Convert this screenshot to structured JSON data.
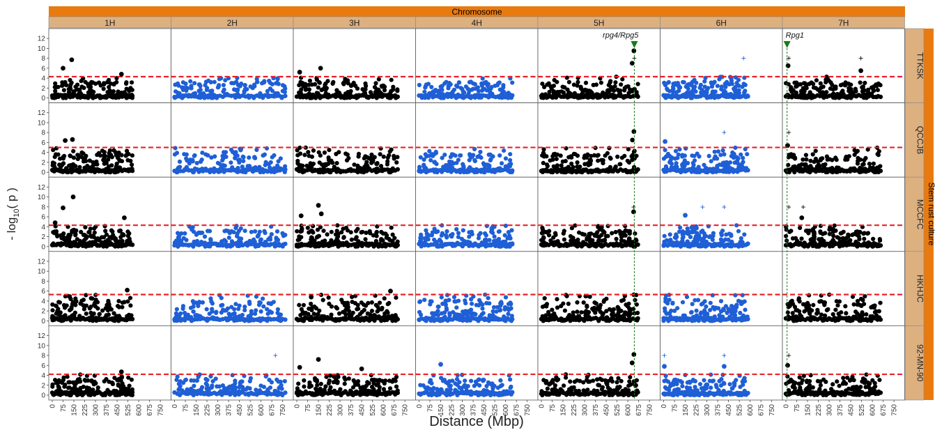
{
  "chart_data": {
    "type": "scatter",
    "title": "Chromosome",
    "xlabel": "Distance (Mbp)",
    "ylabel_prefix": "- log",
    "ylabel_sub": "10",
    "ylabel_suffix": "( p )",
    "row_strip_title": "Stem rust culture",
    "chromosomes": [
      "1H",
      "2H",
      "3H",
      "4H",
      "5H",
      "6H",
      "7H"
    ],
    "chromosome_lengths_mbp": [
      556,
      768,
      700,
      647,
      670,
      585,
      657
    ],
    "chromosome_point_colors": [
      "#000000",
      "#1f5fd6",
      "#000000",
      "#1f5fd6",
      "#000000",
      "#1f5fd6",
      "#000000"
    ],
    "cultures": [
      "TTKSK",
      "QCCJB",
      "MCCFC",
      "HKHJC",
      "92-MN-90"
    ],
    "xlim": [
      0,
      800
    ],
    "x_ticks": [
      0,
      75,
      150,
      225,
      300,
      375,
      450,
      525,
      600,
      675,
      750
    ],
    "x_tick_labels": [
      "0",
      "75",
      "150",
      "225",
      "300",
      "375",
      "450",
      "525",
      "600",
      "675",
      "750"
    ],
    "ylim": [
      0,
      13
    ],
    "y_ticks": [
      0,
      2,
      4,
      6,
      8,
      10,
      12
    ],
    "y_tick_labels": [
      "0",
      "2",
      "4",
      "6",
      "8",
      "10",
      "12"
    ],
    "thresholds": [
      4.3,
      5.0,
      4.3,
      5.3,
      4.2
    ],
    "threshold_color": "#e8202a",
    "strip_top_color": "#e87a10",
    "strip_color": "#ddb080",
    "genes": [
      {
        "label": "rpg4/Rpg5",
        "chromosome": "5H",
        "position_mbp": 645,
        "color": "#1a7a1a"
      },
      {
        "label": "Rpg1",
        "chromosome": "7H",
        "position_mbp": 8,
        "color": "#1a7a1a"
      }
    ],
    "notable_points": [
      {
        "culture": "TTKSK",
        "chromosome": "1H",
        "x": 135,
        "y": 7.7
      },
      {
        "culture": "TTKSK",
        "chromosome": "1H",
        "x": 75,
        "y": 6.0
      },
      {
        "culture": "TTKSK",
        "chromosome": "1H",
        "x": 480,
        "y": 4.8
      },
      {
        "culture": "TTKSK",
        "chromosome": "3H",
        "x": 165,
        "y": 6.0
      },
      {
        "culture": "TTKSK",
        "chromosome": "3H",
        "x": 20,
        "y": 5.2
      },
      {
        "culture": "TTKSK",
        "chromosome": "5H",
        "x": 642,
        "y": 9.5
      },
      {
        "culture": "TTKSK",
        "chromosome": "5H",
        "x": 630,
        "y": 7.0
      },
      {
        "culture": "TTKSK",
        "chromosome": "7H",
        "x": 15,
        "y": 6.5
      },
      {
        "culture": "TTKSK",
        "chromosome": "7H",
        "x": 520,
        "y": 5.5
      },
      {
        "culture": "QCCJB",
        "chromosome": "1H",
        "x": 90,
        "y": 6.4
      },
      {
        "culture": "QCCJB",
        "chromosome": "1H",
        "x": 140,
        "y": 6.6
      },
      {
        "culture": "QCCJB",
        "chromosome": "5H",
        "x": 642,
        "y": 8.2
      },
      {
        "culture": "QCCJB",
        "chromosome": "5H",
        "x": 632,
        "y": 6.5
      },
      {
        "culture": "QCCJB",
        "chromosome": "6H",
        "x": 10,
        "y": 6.2
      },
      {
        "culture": "QCCJB",
        "chromosome": "7H",
        "x": 12,
        "y": 5.4
      },
      {
        "culture": "MCCFC",
        "chromosome": "1H",
        "x": 145,
        "y": 10.0
      },
      {
        "culture": "MCCFC",
        "chromosome": "1H",
        "x": 75,
        "y": 7.8
      },
      {
        "culture": "MCCFC",
        "chromosome": "1H",
        "x": 20,
        "y": 4.8
      },
      {
        "culture": "MCCFC",
        "chromosome": "1H",
        "x": 500,
        "y": 5.8
      },
      {
        "culture": "MCCFC",
        "chromosome": "3H",
        "x": 150,
        "y": 8.3
      },
      {
        "culture": "MCCFC",
        "chromosome": "3H",
        "x": 30,
        "y": 6.2
      },
      {
        "culture": "MCCFC",
        "chromosome": "3H",
        "x": 170,
        "y": 6.6
      },
      {
        "culture": "MCCFC",
        "chromosome": "5H",
        "x": 640,
        "y": 7.0
      },
      {
        "culture": "MCCFC",
        "chromosome": "6H",
        "x": 150,
        "y": 6.3
      },
      {
        "culture": "MCCFC",
        "chromosome": "7H",
        "x": 110,
        "y": 5.8
      },
      {
        "culture": "HKHJC",
        "chromosome": "1H",
        "x": 520,
        "y": 6.2
      },
      {
        "culture": "HKHJC",
        "chromosome": "3H",
        "x": 650,
        "y": 6.0
      },
      {
        "culture": "HKHJC",
        "chromosome": "3H",
        "x": 100,
        "y": 4.8
      },
      {
        "culture": "HKHJC",
        "chromosome": "1H",
        "x": 120,
        "y": 4.9
      },
      {
        "culture": "92-MN-90",
        "chromosome": "3H",
        "x": 150,
        "y": 7.2
      },
      {
        "culture": "92-MN-90",
        "chromosome": "3H",
        "x": 20,
        "y": 5.6
      },
      {
        "culture": "92-MN-90",
        "chromosome": "3H",
        "x": 450,
        "y": 5.3
      },
      {
        "culture": "92-MN-90",
        "chromosome": "4H",
        "x": 150,
        "y": 6.2
      },
      {
        "culture": "92-MN-90",
        "chromosome": "5H",
        "x": 642,
        "y": 8.2
      },
      {
        "culture": "92-MN-90",
        "chromosome": "5H",
        "x": 630,
        "y": 6.5
      },
      {
        "culture": "92-MN-90",
        "chromosome": "6H",
        "x": 5,
        "y": 5.8
      },
      {
        "culture": "92-MN-90",
        "chromosome": "6H",
        "x": 420,
        "y": 5.8
      },
      {
        "culture": "92-MN-90",
        "chromosome": "7H",
        "x": 12,
        "y": 6.0
      },
      {
        "culture": "92-MN-90",
        "chromosome": "1H",
        "x": 480,
        "y": 4.7
      }
    ],
    "plus_markers": [
      {
        "culture": "TTKSK",
        "chromosome": "6H",
        "x": 555,
        "y": 8
      },
      {
        "culture": "TTKSK",
        "chromosome": "7H",
        "x": 20,
        "y": 8
      },
      {
        "culture": "TTKSK",
        "chromosome": "7H",
        "x": 520,
        "y": 8
      },
      {
        "culture": "TTKSK",
        "chromosome": "5H",
        "x": 645,
        "y": 8
      },
      {
        "culture": "QCCJB",
        "chromosome": "6H",
        "x": 420,
        "y": 8
      },
      {
        "culture": "QCCJB",
        "chromosome": "7H",
        "x": 20,
        "y": 8
      },
      {
        "culture": "MCCFC",
        "chromosome": "6H",
        "x": 270,
        "y": 8
      },
      {
        "culture": "MCCFC",
        "chromosome": "6H",
        "x": 420,
        "y": 8
      },
      {
        "culture": "MCCFC",
        "chromosome": "7H",
        "x": 20,
        "y": 8
      },
      {
        "culture": "MCCFC",
        "chromosome": "7H",
        "x": 120,
        "y": 8
      },
      {
        "culture": "MCCFC",
        "chromosome": "5H",
        "x": 640,
        "y": 8
      },
      {
        "culture": "92-MN-90",
        "chromosome": "2H",
        "x": 700,
        "y": 8
      },
      {
        "culture": "92-MN-90",
        "chromosome": "6H",
        "x": 5,
        "y": 8
      },
      {
        "culture": "92-MN-90",
        "chromosome": "6H",
        "x": 420,
        "y": 8
      },
      {
        "culture": "92-MN-90",
        "chromosome": "7H",
        "x": 20,
        "y": 8
      }
    ]
  }
}
